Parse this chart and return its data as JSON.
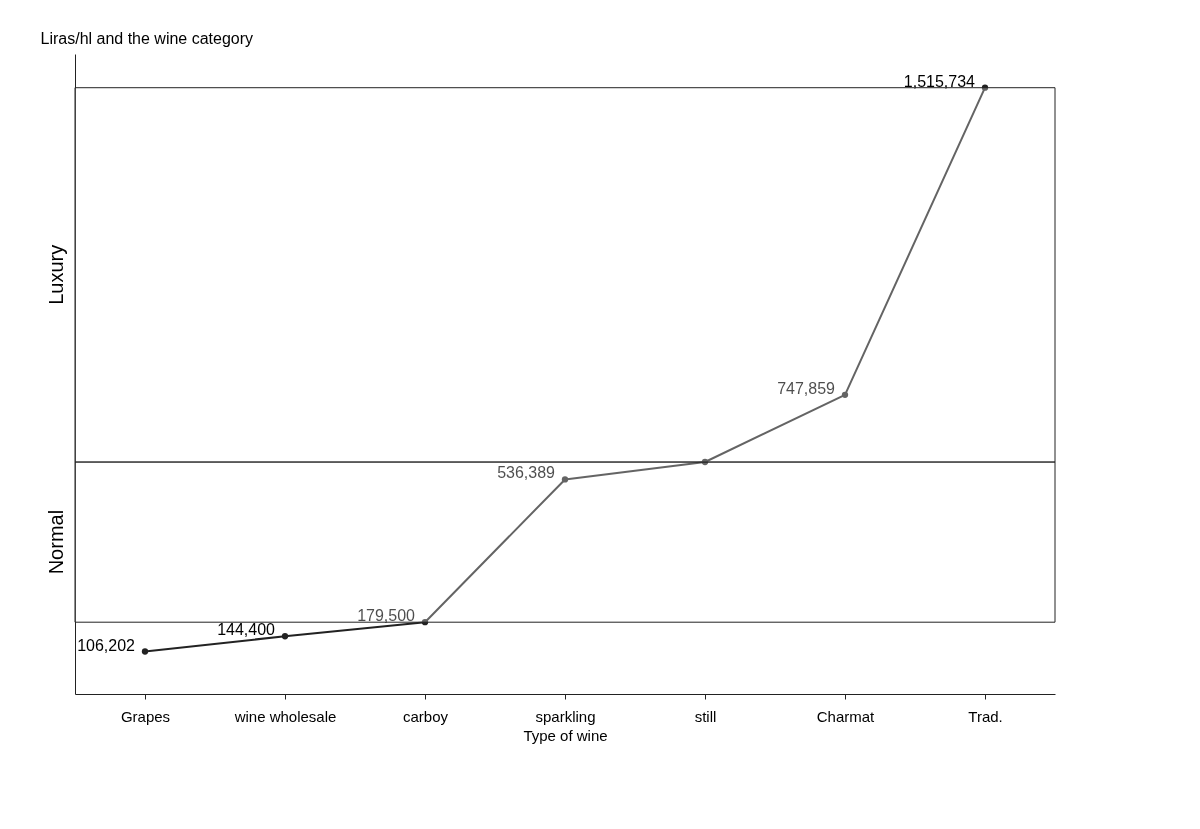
{
  "chart_data": {
    "type": "line",
    "xlabel": "Type of wine",
    "ylabel": "Liras/hl and the wine category",
    "categories": [
      "Grapes",
      "wine wholesale",
      "carboy",
      "sparkling",
      "still",
      "Charmat",
      "Trad."
    ],
    "series": [
      {
        "color": "#222222",
        "values": [
          106202,
          144400,
          179500,
          536389,
          580000,
          747859,
          1515734
        ],
        "value_labels": [
          "106,202",
          "144,400",
          "179,500",
          "536,389",
          null,
          "747,859",
          "1,515,734"
        ]
      }
    ],
    "bands": [
      {
        "axis": "y",
        "from": 179500,
        "to": 580000,
        "label": "Normal",
        "color": "#ffffff"
      },
      {
        "axis": "y",
        "from": 580000,
        "to": 1515734,
        "label": "Luxury",
        "color": "#ffffff"
      }
    ],
    "marker": "circle",
    "line_style": "solid",
    "grid": false,
    "tick_labels": "x"
  }
}
